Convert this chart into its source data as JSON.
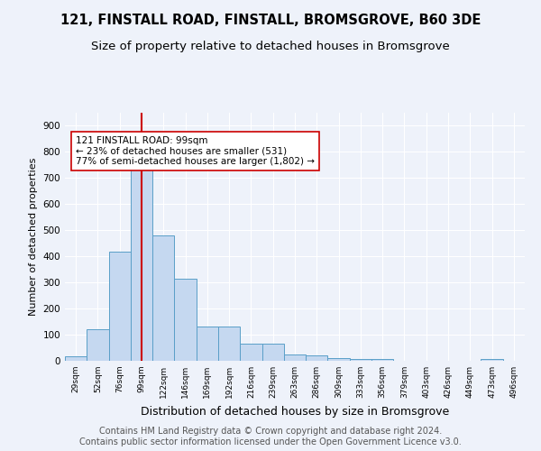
{
  "title": "121, FINSTALL ROAD, FINSTALL, BROMSGROVE, B60 3DE",
  "subtitle": "Size of property relative to detached houses in Bromsgrove",
  "xlabel": "Distribution of detached houses by size in Bromsgrove",
  "ylabel": "Number of detached properties",
  "categories": [
    "29sqm",
    "52sqm",
    "76sqm",
    "99sqm",
    "122sqm",
    "146sqm",
    "169sqm",
    "192sqm",
    "216sqm",
    "239sqm",
    "263sqm",
    "286sqm",
    "309sqm",
    "333sqm",
    "356sqm",
    "379sqm",
    "403sqm",
    "426sqm",
    "449sqm",
    "473sqm",
    "496sqm"
  ],
  "values": [
    18,
    120,
    417,
    735,
    480,
    315,
    133,
    133,
    65,
    65,
    25,
    20,
    10,
    8,
    8,
    0,
    0,
    0,
    0,
    8,
    0
  ],
  "bar_color": "#c5d8f0",
  "bar_edge_color": "#5a9fc8",
  "vline_x": 3,
  "vline_color": "#cc0000",
  "annotation_text": "121 FINSTALL ROAD: 99sqm\n← 23% of detached houses are smaller (531)\n77% of semi-detached houses are larger (1,802) →",
  "annotation_box_color": "white",
  "annotation_box_edge_color": "#cc0000",
  "ylim": [
    0,
    950
  ],
  "yticks": [
    0,
    100,
    200,
    300,
    400,
    500,
    600,
    700,
    800,
    900
  ],
  "background_color": "#eef2fa",
  "grid_color": "#ffffff",
  "title_fontsize": 10.5,
  "subtitle_fontsize": 9.5,
  "ylabel_fontsize": 8,
  "xlabel_fontsize": 9,
  "footer_text": "Contains HM Land Registry data © Crown copyright and database right 2024.\nContains public sector information licensed under the Open Government Licence v3.0.",
  "footer_fontsize": 7
}
